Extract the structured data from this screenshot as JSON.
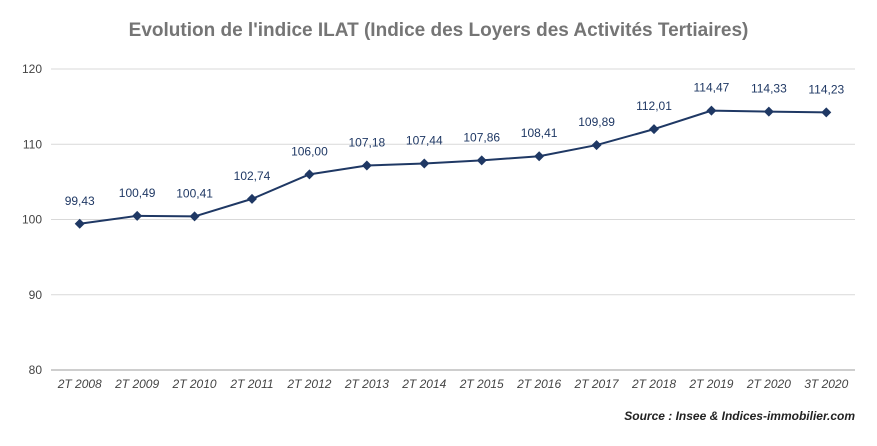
{
  "chart_data": {
    "type": "line",
    "title": "Evolution de l'indice ILAT (Indice des Loyers des Activités Tertiaires)",
    "source": "Source : Insee & Indices-immobilier.com",
    "categories": [
      "2T 2008",
      "2T 2009",
      "2T 2010",
      "2T 2011",
      "2T 2012",
      "2T 2013",
      "2T 2014",
      "2T 2015",
      "2T 2016",
      "2T 2017",
      "2T 2018",
      "2T 2019",
      "2T 2020",
      "3T 2020"
    ],
    "values": [
      99.43,
      100.49,
      100.41,
      102.74,
      106.0,
      107.18,
      107.44,
      107.86,
      108.41,
      109.89,
      112.01,
      114.47,
      114.33,
      114.23
    ],
    "data_labels": [
      "99,43",
      "100,49",
      "100,41",
      "102,74",
      "106,00",
      "107,18",
      "107,44",
      "107,86",
      "108,41",
      "109,89",
      "112,01",
      "114,47",
      "114,33",
      "114,23"
    ],
    "ylim": [
      80,
      120
    ],
    "yticks": [
      80,
      90,
      100,
      110,
      120
    ],
    "grid": true,
    "legend": "none",
    "line_color": "#1f3864"
  }
}
